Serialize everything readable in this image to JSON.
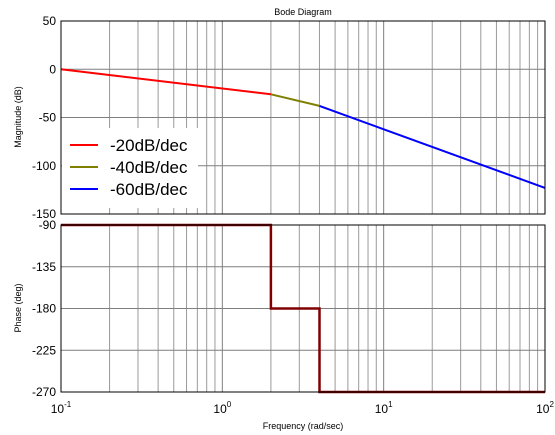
{
  "chart_data": [
    {
      "type": "line",
      "title": "Bode Diagram",
      "ylabel": "Magnitude (dB)",
      "xscale": "log",
      "xlim": [
        0.1,
        100
      ],
      "ylim": [
        -150,
        50
      ],
      "yticks": [
        50,
        0,
        -50,
        -100,
        -150
      ],
      "grid": true,
      "legend_position": "bottom-left",
      "series": [
        {
          "name": "-20dB/dec",
          "color": "#ff0000",
          "x": [
            0.1,
            2
          ],
          "y": [
            0,
            -26
          ]
        },
        {
          "name": "-40dB/dec",
          "color": "#808000",
          "x": [
            2,
            4
          ],
          "y": [
            -26,
            -38
          ]
        },
        {
          "name": "-60dB/dec",
          "color": "#0000ff",
          "x": [
            4,
            100
          ],
          "y": [
            -38,
            -123
          ]
        }
      ]
    },
    {
      "type": "line",
      "ylabel": "Phase (deg)",
      "xlabel": "Frequency  (rad/sec)",
      "xscale": "log",
      "xlim": [
        0.1,
        100
      ],
      "ylim": [
        -270,
        -90
      ],
      "yticks": [
        -90,
        -135,
        -180,
        -225,
        -270
      ],
      "xticks": [
        {
          "base": "10",
          "exp": "-1",
          "value": 0.1
        },
        {
          "base": "10",
          "exp": "0",
          "value": 1
        },
        {
          "base": "10",
          "exp": "1",
          "value": 10
        },
        {
          "base": "10",
          "exp": "2",
          "value": 100
        }
      ],
      "grid": true,
      "series": [
        {
          "color": "#800000",
          "x": [
            0.1,
            2,
            2,
            4,
            4,
            100
          ],
          "y": [
            -90,
            -90,
            -180,
            -180,
            -270,
            -270
          ]
        }
      ]
    }
  ]
}
